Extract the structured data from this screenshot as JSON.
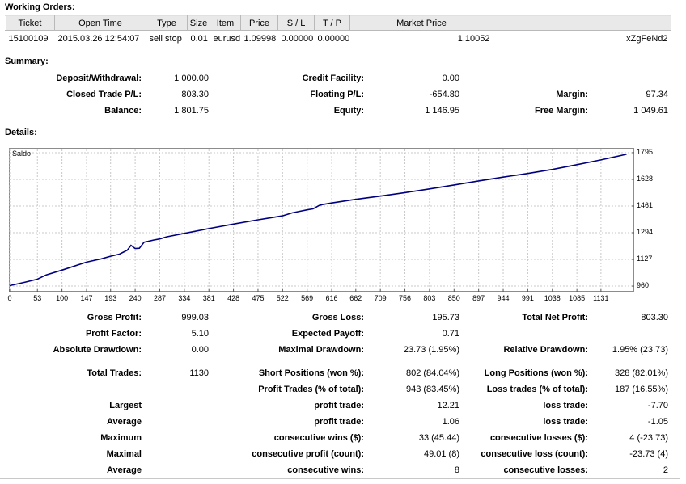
{
  "working_orders": {
    "title": "Working Orders:",
    "columns": [
      "Ticket",
      "Open Time",
      "Type",
      "Size",
      "Item",
      "Price",
      "S / L",
      "T / P",
      "Market Price",
      ""
    ],
    "rows": [
      [
        "15100109",
        "2015.03.26 12:54:07",
        "sell stop",
        "0.01",
        "eurusd",
        "1.09998",
        "0.00000",
        "0.00000",
        "1.10052",
        "xZgFeNd2"
      ]
    ]
  },
  "summary": {
    "title": "Summary:",
    "deposit_label": "Deposit/Withdrawal:",
    "deposit_value": "1 000.00",
    "credit_label": "Credit Facility:",
    "credit_value": "0.00",
    "closed_label": "Closed Trade P/L:",
    "closed_value": "803.30",
    "floating_label": "Floating P/L:",
    "floating_value": "-654.80",
    "margin_label": "Margin:",
    "margin_value": "97.34",
    "balance_label": "Balance:",
    "balance_value": "1 801.75",
    "equity_label": "Equity:",
    "equity_value": "1 146.95",
    "free_margin_label": "Free Margin:",
    "free_margin_value": "1 049.61"
  },
  "details": {
    "title": "Details:"
  },
  "chart_data": {
    "type": "line",
    "title": "Saldo",
    "x_ticks": [
      0,
      53,
      100,
      147,
      193,
      240,
      287,
      334,
      381,
      428,
      475,
      522,
      569,
      616,
      662,
      709,
      756,
      803,
      850,
      897,
      944,
      991,
      1038,
      1085,
      1131
    ],
    "y_ticks": [
      960,
      1127,
      1294,
      1461,
      1628,
      1795
    ],
    "xlim": [
      0,
      1190
    ],
    "ylim": [
      940,
      1815
    ],
    "grid": true,
    "series": [
      {
        "color": "#00007f",
        "x": [
          0,
          30,
          53,
          70,
          100,
          147,
          175,
          193,
          210,
          225,
          232,
          240,
          248,
          257,
          265,
          275,
          287,
          300,
          334,
          381,
          428,
          475,
          500,
          522,
          540,
          555,
          569,
          580,
          585,
          592,
          598,
          616,
          662,
          709,
          756,
          803,
          850,
          897,
          944,
          991,
          1038,
          1085,
          1131,
          1180
        ],
        "y": [
          963,
          985,
          1003,
          1030,
          1060,
          1110,
          1130,
          1147,
          1160,
          1185,
          1215,
          1195,
          1197,
          1235,
          1240,
          1248,
          1255,
          1268,
          1290,
          1320,
          1348,
          1375,
          1388,
          1400,
          1418,
          1428,
          1437,
          1443,
          1452,
          1465,
          1470,
          1480,
          1503,
          1523,
          1545,
          1568,
          1593,
          1618,
          1642,
          1665,
          1690,
          1720,
          1750,
          1785
        ]
      }
    ]
  },
  "stats": {
    "gross_profit_label": "Gross Profit:",
    "gross_profit_value": "999.03",
    "gross_loss_label": "Gross Loss:",
    "gross_loss_value": "195.73",
    "total_net_profit_label": "Total Net Profit:",
    "total_net_profit_value": "803.30",
    "profit_factor_label": "Profit Factor:",
    "profit_factor_value": "5.10",
    "expected_payoff_label": "Expected Payoff:",
    "expected_payoff_value": "0.71",
    "absolute_dd_label": "Absolute Drawdown:",
    "absolute_dd_value": "0.00",
    "maximal_dd_label": "Maximal Drawdown:",
    "maximal_dd_value": "23.73 (1.95%)",
    "relative_dd_label": "Relative Drawdown:",
    "relative_dd_value": "1.95% (23.73)",
    "total_trades_label": "Total Trades:",
    "total_trades_value": "1130",
    "short_label": "Short Positions (won %):",
    "short_value": "802 (84.04%)",
    "long_label": "Long Positions (won %):",
    "long_value": "328 (82.01%)",
    "profit_trades_label": "Profit Trades (% of total):",
    "profit_trades_value": "943 (83.45%)",
    "loss_trades_label": "Loss trades (% of total):",
    "loss_trades_value": "187 (16.55%)",
    "largest_label": "Largest",
    "largest_profit_label": "profit trade:",
    "largest_profit_value": "12.21",
    "largest_loss_label": "loss trade:",
    "largest_loss_value": "-7.70",
    "average_label": "Average",
    "average_profit_label": "profit trade:",
    "average_profit_value": "1.06",
    "average_loss_label": "loss trade:",
    "average_loss_value": "-1.05",
    "maximum_label": "Maximum",
    "max_wins_label": "consecutive wins ($):",
    "max_wins_value": "33 (45.44)",
    "max_losses_label": "consecutive losses ($):",
    "max_losses_value": "4 (-23.73)",
    "maximal_label": "Maximal",
    "max_profit_label": "consecutive profit (count):",
    "max_profit_value": "49.01 (8)",
    "max_loss_label": "consecutive loss (count):",
    "max_loss_value": "-23.73 (4)",
    "average2_label": "Average",
    "avg_wins_label": "consecutive wins:",
    "avg_wins_value": "8",
    "avg_losses_label": "consecutive losses:",
    "avg_losses_value": "2"
  }
}
